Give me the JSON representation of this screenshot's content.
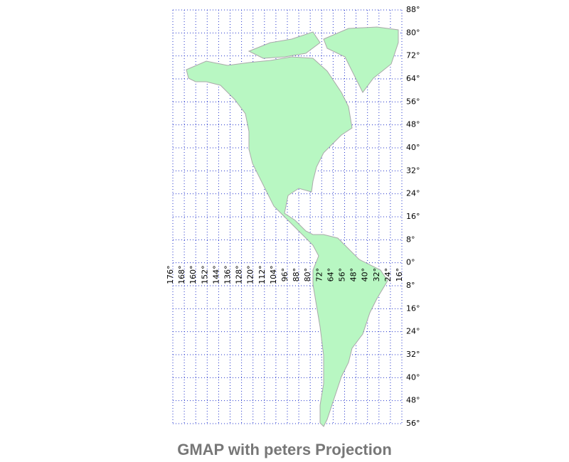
{
  "title": "GMAP with peters Projection",
  "latitudes": [
    {
      "value": 88,
      "label": "88°"
    },
    {
      "value": 80,
      "label": "80°"
    },
    {
      "value": 72,
      "label": "72°"
    },
    {
      "value": 64,
      "label": "64°"
    },
    {
      "value": 56,
      "label": "56°"
    },
    {
      "value": 48,
      "label": "48°"
    },
    {
      "value": 40,
      "label": "40°"
    },
    {
      "value": 32,
      "label": "32°"
    },
    {
      "value": 24,
      "label": "24°"
    },
    {
      "value": 16,
      "label": "16°"
    },
    {
      "value": 8,
      "label": "8°"
    },
    {
      "value": 0,
      "label": "0°"
    },
    {
      "value": -8,
      "label": "8°"
    },
    {
      "value": -16,
      "label": "16°"
    },
    {
      "value": -24,
      "label": "24°"
    },
    {
      "value": -32,
      "label": "32°"
    },
    {
      "value": -40,
      "label": "40°"
    },
    {
      "value": -48,
      "label": "48°"
    },
    {
      "value": -56,
      "label": "56°"
    }
  ],
  "longitudes": [
    {
      "value": -176,
      "label": "176°"
    },
    {
      "value": -168,
      "label": "168°"
    },
    {
      "value": -160,
      "label": "160°"
    },
    {
      "value": -152,
      "label": "152°"
    },
    {
      "value": -144,
      "label": "144°"
    },
    {
      "value": -136,
      "label": "136°"
    },
    {
      "value": -128,
      "label": "128°"
    },
    {
      "value": -120,
      "label": "120°"
    },
    {
      "value": -112,
      "label": "112°"
    },
    {
      "value": -104,
      "label": "104°"
    },
    {
      "value": -96,
      "label": "96°"
    },
    {
      "value": -88,
      "label": "88°"
    },
    {
      "value": -80,
      "label": "80°"
    },
    {
      "value": -72,
      "label": "72°"
    },
    {
      "value": -64,
      "label": "64°"
    },
    {
      "value": -56,
      "label": "56°"
    },
    {
      "value": -48,
      "label": "48°"
    },
    {
      "value": -40,
      "label": "40°"
    },
    {
      "value": -32,
      "label": "32°"
    },
    {
      "value": -24,
      "label": "24°"
    },
    {
      "value": -16,
      "label": "16°"
    }
  ]
}
